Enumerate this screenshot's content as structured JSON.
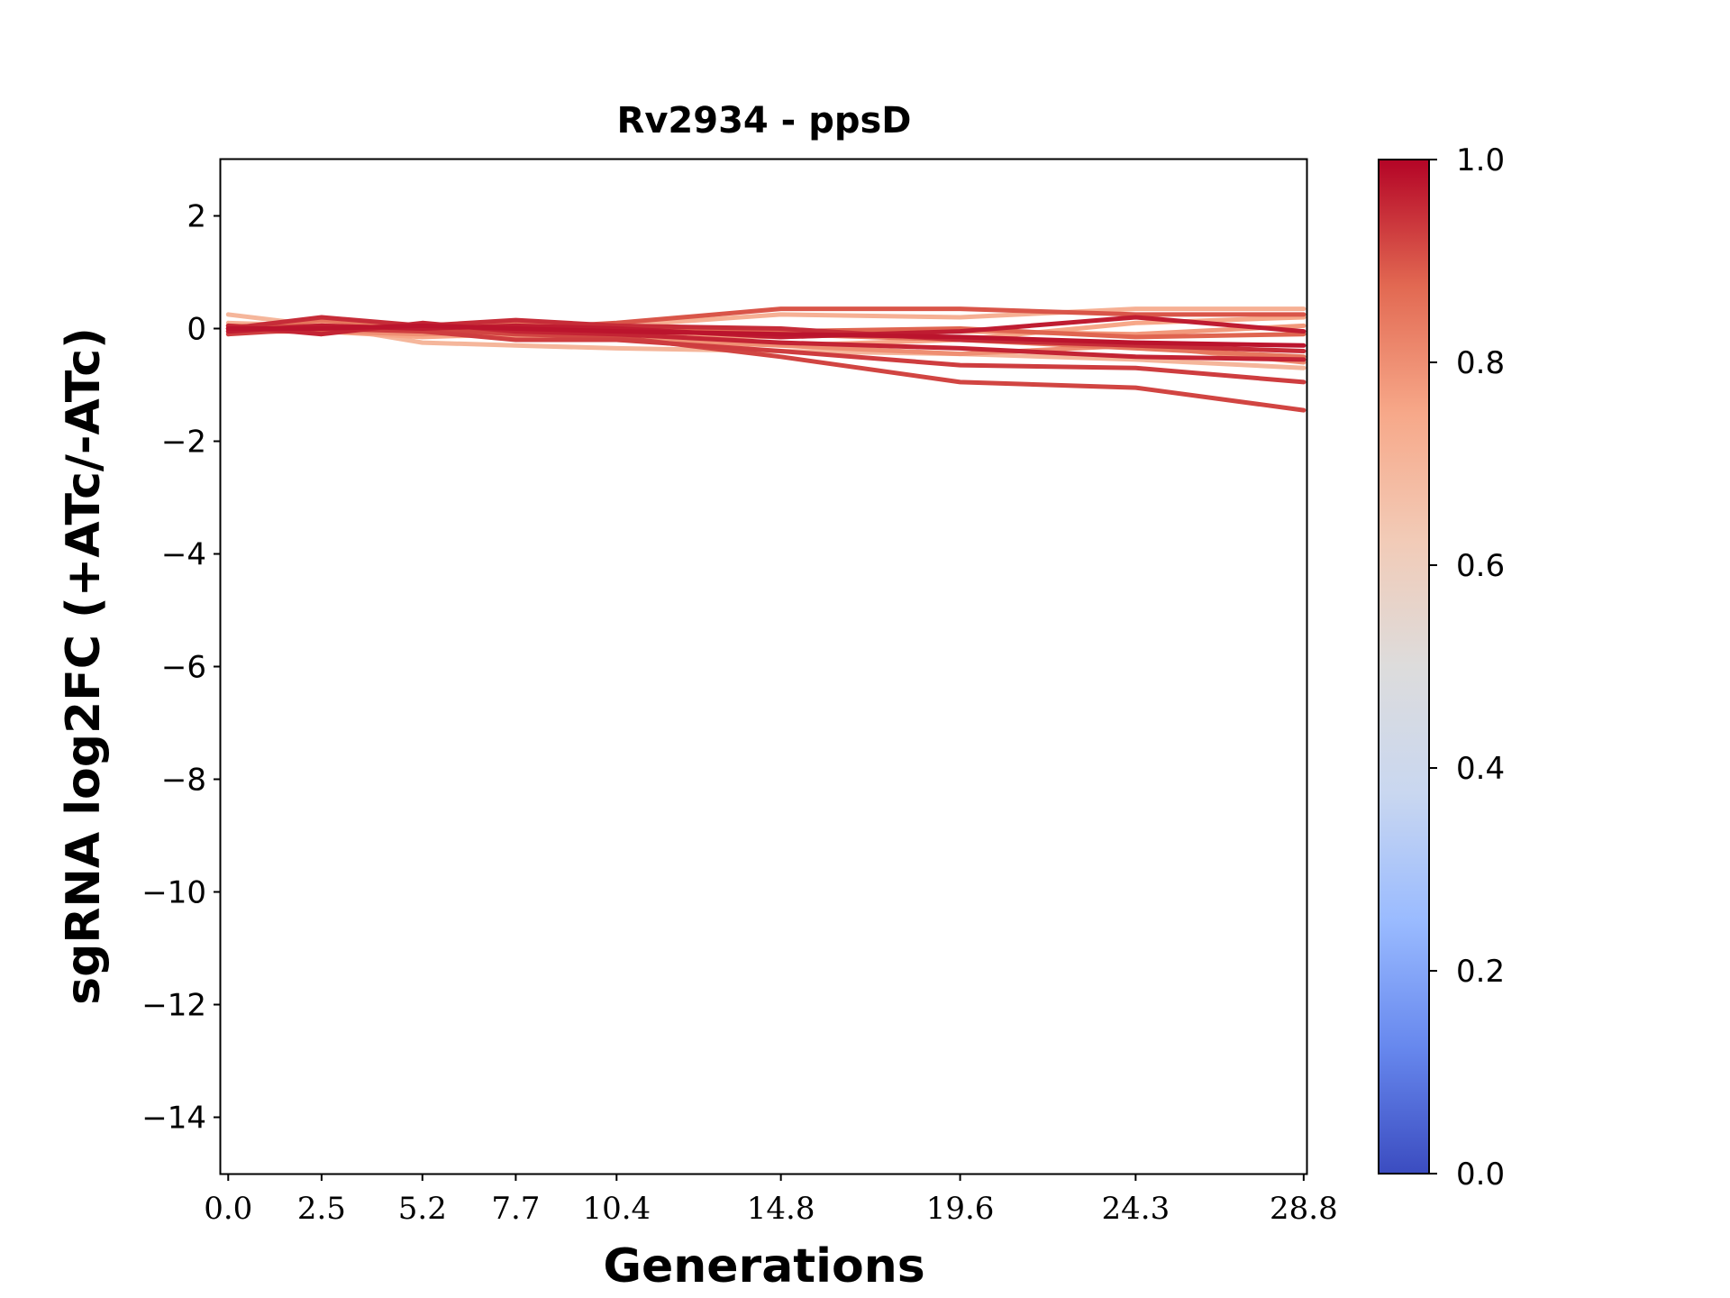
{
  "chart_data": {
    "type": "line",
    "title": "Rv2934 - ppsD",
    "xlabel": "Generations",
    "ylabel": "sgRNA log2FC (+ATc/-ATc)",
    "x": [
      0.0,
      2.5,
      5.2,
      7.7,
      10.4,
      14.8,
      19.6,
      24.3,
      28.8
    ],
    "x_tick_labels": [
      "0.0",
      "2.5",
      "5.2",
      "7.7",
      "10.4",
      "14.8",
      "19.6",
      "24.3",
      "28.8"
    ],
    "xlim": [
      -0.2,
      28.9
    ],
    "ylim": [
      -15,
      3
    ],
    "y_ticks": [
      2,
      0,
      -2,
      -4,
      -6,
      -8,
      -10,
      -12,
      -14
    ],
    "y_tick_labels": [
      "2",
      "0",
      "−2",
      "−4",
      "−6",
      "−8",
      "−10",
      "−12",
      "−14"
    ],
    "grid": false,
    "colorbar": {
      "colormap": "coolwarm",
      "range": [
        0.0,
        1.0
      ],
      "ticks": [
        0.0,
        0.2,
        0.4,
        0.6,
        0.8,
        1.0
      ],
      "tick_labels": [
        "0.0",
        "0.2",
        "0.4",
        "0.6",
        "0.8",
        "1.0"
      ],
      "colors": [
        "#3b4cc0",
        "#6788ee",
        "#9abbff",
        "#c9d7f0",
        "#dddcdc",
        "#f2cbb7",
        "#f7a889",
        "#e26952",
        "#b40426"
      ]
    },
    "series": [
      {
        "color_value": 0.7,
        "values": [
          0.25,
          0.05,
          -0.25,
          -0.3,
          -0.35,
          -0.4,
          -0.45,
          -0.55,
          -0.7
        ]
      },
      {
        "color_value": 0.72,
        "values": [
          0.1,
          0.05,
          -0.05,
          0.0,
          0.05,
          0.25,
          0.2,
          0.35,
          0.35
        ]
      },
      {
        "color_value": 0.75,
        "values": [
          -0.05,
          -0.05,
          -0.15,
          -0.1,
          -0.2,
          -0.3,
          -0.2,
          0.1,
          0.2
        ]
      },
      {
        "color_value": 0.78,
        "values": [
          0.0,
          0.1,
          0.05,
          -0.15,
          -0.1,
          -0.15,
          -0.05,
          -0.1,
          0.05
        ]
      },
      {
        "color_value": 0.8,
        "values": [
          0.05,
          -0.05,
          -0.1,
          -0.05,
          -0.15,
          -0.3,
          -0.45,
          -0.3,
          -0.6
        ]
      },
      {
        "color_value": 0.85,
        "values": [
          0.0,
          0.15,
          0.0,
          0.1,
          0.0,
          -0.1,
          -0.2,
          -0.35,
          -0.5
        ]
      },
      {
        "color_value": 0.88,
        "values": [
          0.05,
          0.0,
          0.05,
          -0.05,
          -0.05,
          -0.05,
          0.0,
          -0.15,
          -0.1
        ]
      },
      {
        "color_value": 0.9,
        "values": [
          -0.05,
          -0.05,
          0.05,
          0.0,
          0.1,
          0.35,
          0.35,
          0.25,
          0.25
        ]
      },
      {
        "color_value": 0.92,
        "values": [
          0.0,
          0.05,
          0.0,
          -0.1,
          -0.15,
          -0.5,
          -0.95,
          -1.05,
          -1.45
        ]
      },
      {
        "color_value": 0.93,
        "values": [
          -0.1,
          0.0,
          -0.05,
          -0.2,
          -0.2,
          -0.4,
          -0.65,
          -0.7,
          -0.95
        ]
      },
      {
        "color_value": 0.95,
        "values": [
          0.0,
          0.2,
          0.05,
          0.15,
          0.05,
          0.0,
          -0.2,
          -0.3,
          -0.4
        ]
      },
      {
        "color_value": 0.96,
        "values": [
          0.05,
          -0.1,
          0.1,
          -0.05,
          -0.1,
          -0.25,
          -0.35,
          -0.5,
          -0.55
        ]
      },
      {
        "color_value": 0.97,
        "values": [
          -0.05,
          0.05,
          0.0,
          0.05,
          0.0,
          -0.15,
          -0.05,
          0.2,
          -0.05
        ]
      },
      {
        "color_value": 0.98,
        "values": [
          0.0,
          0.0,
          0.05,
          0.0,
          -0.05,
          -0.1,
          -0.15,
          -0.25,
          -0.3
        ]
      }
    ]
  }
}
